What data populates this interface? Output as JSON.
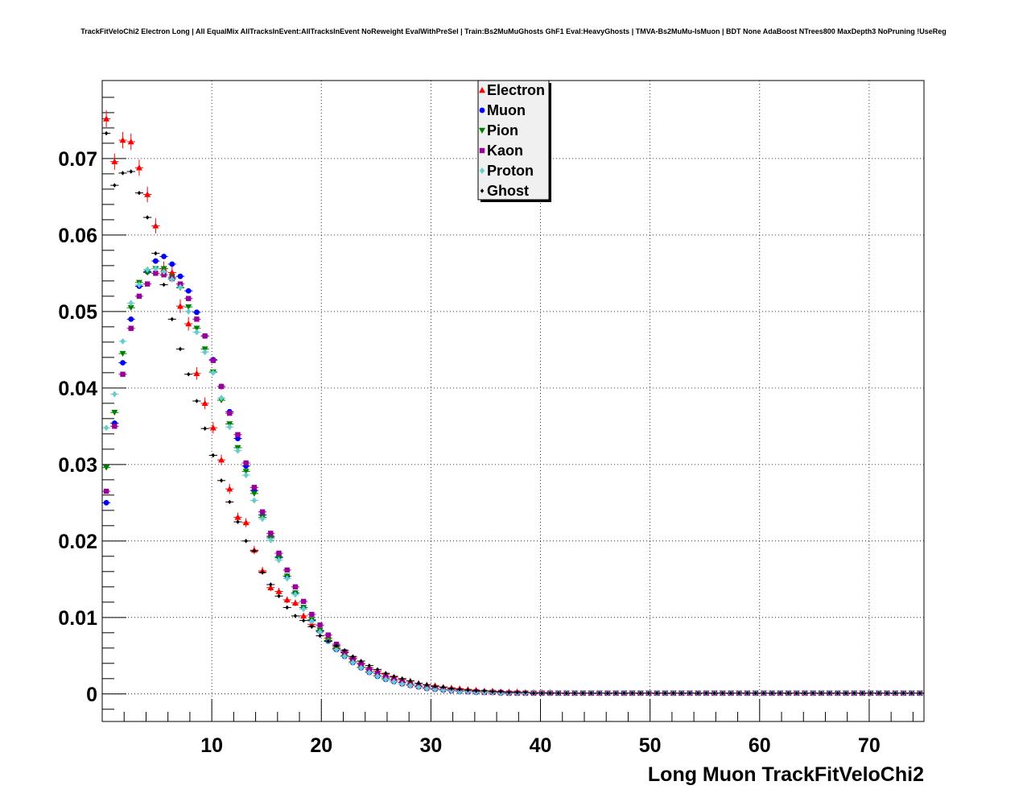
{
  "chart_data": {
    "type": "scatter",
    "title": "TrackFitVeloChi2 Electron Long | All EqualMix AllTracksInEvent:AllTracksInEvent NoReweight EvalWithPreSel | Train:Bs2MuMuGhosts GhF1 Eval:HeavyGhosts | TMVA-Bs2MuMu-IsMuon | BDT None AdaBoost NTrees800 MaxDepth3 NoPruning !UseReg",
    "xlabel": "Long Muon TrackFitVeloChi2",
    "ylabel": "",
    "xlim": [
      0,
      75
    ],
    "ylim": [
      -0.0036,
      0.0802
    ],
    "x_ticks": [
      10,
      20,
      30,
      40,
      50,
      60,
      70
    ],
    "x_tick_labels": [
      "10",
      "20",
      "30",
      "40",
      "50",
      "60",
      "70"
    ],
    "y_ticks": [
      0,
      0.01,
      0.02,
      0.03,
      0.04,
      0.05,
      0.06,
      0.07
    ],
    "y_tick_labels": [
      "0",
      "0.01",
      "0.02",
      "0.03",
      "0.04",
      "0.05",
      "0.06",
      "0.07"
    ],
    "grid": true,
    "legend_position": "top-center",
    "bin_width": 0.75,
    "series": [
      {
        "name": "Electron",
        "color": "#ff0000",
        "marker": "triangle-up",
        "x_err": true,
        "y_err": true,
        "values": [
          0.0752,
          0.0696,
          0.0724,
          0.0722,
          0.0688,
          0.0653,
          0.0612,
          0.0556,
          0.0551,
          0.0507,
          0.0484,
          0.0419,
          0.038,
          0.0348,
          0.0306,
          0.0268,
          0.0231,
          0.0224,
          0.0188,
          0.0161,
          0.0139,
          0.0134,
          0.0123,
          0.0119,
          0.0102,
          0.0091,
          0.0083,
          0.0073,
          0.006,
          0.0054,
          0.0047,
          0.004,
          0.0034,
          0.003,
          0.0026,
          0.0022,
          0.0019,
          0.0017,
          0.0014,
          0.0012,
          0.0011,
          0.0009,
          0.0008,
          0.0007,
          0.0006,
          0.0005,
          0.0004,
          0.0004,
          0.0003,
          0.0003,
          0.0003,
          0.0002,
          0.0002,
          0.0002,
          0.0002,
          0.0001,
          0.0001,
          0.0001,
          0.0001,
          0.0001,
          0.0001,
          0.0001,
          0.0001,
          0.0001,
          0.0001,
          0.0001,
          0.0001,
          0.0001,
          0.0001,
          0.0001,
          0.0001,
          0.0001,
          0.0001,
          0.0001,
          0.0001,
          0.0001,
          0.0001,
          0.0001,
          0.0001,
          0.0001,
          0.0001,
          0.0001,
          0.0001,
          0.0001,
          0.0001,
          0.0001,
          0.0001,
          0.0001,
          0.0001,
          0.0001,
          0.0001,
          0.0001,
          0.0001,
          0.0001,
          0.0001,
          0.0001,
          0.0001,
          0.0001,
          0.0001,
          0.0001
        ]
      },
      {
        "name": "Muon",
        "color": "#0000ff",
        "marker": "circle",
        "x_err": true,
        "y_err": false,
        "values": [
          0.025,
          0.0354,
          0.0433,
          0.049,
          0.0533,
          0.0552,
          0.0566,
          0.0572,
          0.0562,
          0.0546,
          0.0527,
          0.0499,
          0.0468,
          0.0437,
          0.0402,
          0.0369,
          0.0334,
          0.0298,
          0.0266,
          0.0234,
          0.0206,
          0.0179,
          0.0154,
          0.0132,
          0.0113,
          0.0096,
          0.0082,
          0.0069,
          0.0058,
          0.0049,
          0.0041,
          0.0034,
          0.0028,
          0.0023,
          0.0019,
          0.0016,
          0.0013,
          0.0011,
          0.0009,
          0.0007,
          0.0006,
          0.0005,
          0.0004,
          0.0003,
          0.0003,
          0.0002,
          0.0002,
          0.0002,
          0.0001,
          0.0001,
          0.0001,
          0.0001,
          0.0001,
          0.0001,
          0.0001,
          0.0001,
          0.0001,
          0.0001,
          0.0001,
          0.0001,
          0.0001,
          0.0001,
          0.0001,
          0.0001,
          0.0001,
          0.0001,
          0.0001,
          0.0001,
          0.0001,
          0.0001,
          0.0001,
          0.0001,
          0.0001,
          0.0001,
          0.0001,
          0.0001,
          0.0001,
          0.0001,
          0.0001,
          0.0001,
          0.0001,
          0.0001,
          0.0001,
          0.0001,
          0.0001,
          0.0001,
          0.0001,
          0.0001,
          0.0001,
          0.0001,
          0.0001,
          0.0001,
          0.0001,
          0.0001,
          0.0001,
          0.0001,
          0.0001,
          0.0001,
          0.0001,
          0.0001
        ]
      },
      {
        "name": "Pion",
        "color": "#008000",
        "marker": "triangle-down",
        "x_err": true,
        "y_err": false,
        "values": [
          0.0296,
          0.0368,
          0.0445,
          0.0505,
          0.0538,
          0.0551,
          0.0556,
          0.0556,
          0.0545,
          0.0531,
          0.0506,
          0.0478,
          0.0451,
          0.0421,
          0.0384,
          0.0353,
          0.0322,
          0.0291,
          0.0262,
          0.0231,
          0.0204,
          0.0178,
          0.0154,
          0.0132,
          0.0113,
          0.0097,
          0.0083,
          0.007,
          0.0059,
          0.005,
          0.0042,
          0.0035,
          0.0029,
          0.0024,
          0.002,
          0.0016,
          0.0013,
          0.0011,
          0.0009,
          0.0007,
          0.0006,
          0.0005,
          0.0004,
          0.0003,
          0.0003,
          0.0002,
          0.0002,
          0.0002,
          0.0001,
          0.0001,
          0.0001,
          0.0001,
          0.0001,
          0.0001,
          0.0001,
          0.0001,
          0.0001,
          0.0001,
          0.0001,
          0.0001,
          0.0001,
          0.0001,
          0.0001,
          0.0001,
          0.0001,
          0.0001,
          0.0001,
          0.0001,
          0.0001,
          0.0001,
          0.0001,
          0.0001,
          0.0001,
          0.0001,
          0.0001,
          0.0001,
          0.0001,
          0.0001,
          0.0001,
          0.0001,
          0.0001,
          0.0001,
          0.0001,
          0.0001,
          0.0001,
          0.0001,
          0.0001,
          0.0001,
          0.0001,
          0.0001,
          0.0001,
          0.0001,
          0.0001,
          0.0001,
          0.0001,
          0.0001,
          0.0001,
          0.0001,
          0.0001,
          0.0001
        ]
      },
      {
        "name": "Kaon",
        "color": "#990099",
        "marker": "square",
        "x_err": true,
        "y_err": false,
        "values": [
          0.0265,
          0.035,
          0.0418,
          0.0478,
          0.052,
          0.0536,
          0.055,
          0.0548,
          0.0543,
          0.0536,
          0.0517,
          0.049,
          0.0468,
          0.0436,
          0.0402,
          0.0367,
          0.0339,
          0.0302,
          0.027,
          0.0238,
          0.021,
          0.0184,
          0.0162,
          0.014,
          0.0121,
          0.0104,
          0.009,
          0.0077,
          0.0065,
          0.0055,
          0.0046,
          0.0039,
          0.0032,
          0.0027,
          0.0022,
          0.0018,
          0.0015,
          0.0012,
          0.001,
          0.0008,
          0.0007,
          0.0006,
          0.0005,
          0.0004,
          0.0003,
          0.0003,
          0.0002,
          0.0002,
          0.0002,
          0.0001,
          0.0001,
          0.0001,
          0.0001,
          0.0001,
          0.0001,
          0.0001,
          0.0001,
          0.0001,
          0.0001,
          0.0001,
          0.0001,
          0.0001,
          0.0001,
          0.0001,
          0.0001,
          0.0001,
          0.0001,
          0.0001,
          0.0001,
          0.0001,
          0.0001,
          0.0001,
          0.0001,
          0.0001,
          0.0001,
          0.0001,
          0.0001,
          0.0001,
          0.0001,
          0.0001,
          0.0001,
          0.0001,
          0.0001,
          0.0001,
          0.0001,
          0.0001,
          0.0001,
          0.0001,
          0.0001,
          0.0001,
          0.0001,
          0.0001,
          0.0001,
          0.0001,
          0.0001,
          0.0001,
          0.0001,
          0.0001,
          0.0001,
          0.0001
        ]
      },
      {
        "name": "Proton",
        "color": "#66cccc",
        "marker": "diamond",
        "x_err": true,
        "y_err": false,
        "values": [
          0.0348,
          0.0392,
          0.0461,
          0.0511,
          0.0535,
          0.0555,
          0.0556,
          0.0552,
          0.0542,
          0.0532,
          0.05,
          0.0473,
          0.0447,
          0.042,
          0.0387,
          0.0349,
          0.0318,
          0.0286,
          0.0253,
          0.0229,
          0.0201,
          0.0175,
          0.0151,
          0.013,
          0.0111,
          0.0095,
          0.0081,
          0.0069,
          0.0058,
          0.0049,
          0.0041,
          0.0034,
          0.0028,
          0.0023,
          0.0019,
          0.0016,
          0.0013,
          0.0011,
          0.0009,
          0.0007,
          0.0006,
          0.0005,
          0.0004,
          0.0003,
          0.0003,
          0.0002,
          0.0002,
          0.0002,
          0.0001,
          0.0001,
          0.0001,
          0.0001,
          0.0001,
          0.0001,
          0.0001,
          0.0001,
          0.0001,
          0.0001,
          0.0001,
          0.0001,
          0.0001,
          0.0001,
          0.0001,
          0.0001,
          0.0001,
          0.0001,
          0.0001,
          0.0001,
          0.0001,
          0.0001,
          0.0001,
          0.0001,
          0.0001,
          0.0001,
          0.0001,
          0.0001,
          0.0001,
          0.0001,
          0.0001,
          0.0001,
          0.0001,
          0.0001,
          0.0001,
          0.0001,
          0.0001,
          0.0001,
          0.0001,
          0.0001,
          0.0001,
          0.0001,
          0.0001,
          0.0001,
          0.0001,
          0.0001,
          0.0001,
          0.0001,
          0.0001,
          0.0001,
          0.0001,
          0.0001
        ]
      },
      {
        "name": "Ghost",
        "color": "#000000",
        "marker": "diamond-small",
        "x_err": true,
        "y_err": false,
        "values": [
          0.0733,
          0.0665,
          0.0681,
          0.0683,
          0.0655,
          0.0623,
          0.0576,
          0.0535,
          0.049,
          0.0451,
          0.0418,
          0.0383,
          0.0347,
          0.0312,
          0.0279,
          0.0251,
          0.0225,
          0.02,
          0.0187,
          0.0159,
          0.0143,
          0.0128,
          0.0113,
          0.0102,
          0.0096,
          0.0088,
          0.0076,
          0.0069,
          0.0063,
          0.0057,
          0.0049,
          0.0043,
          0.0037,
          0.0032,
          0.0027,
          0.0023,
          0.002,
          0.0017,
          0.0014,
          0.0012,
          0.001,
          0.0009,
          0.0007,
          0.0006,
          0.0005,
          0.0004,
          0.0004,
          0.0003,
          0.0003,
          0.0002,
          0.0002,
          0.0002,
          0.0001,
          0.0001,
          0.0001,
          0.0001,
          0.0001,
          0.0001,
          0.0001,
          0.0001,
          0.0001,
          0.0001,
          0.0001,
          0.0001,
          0.0001,
          0.0001,
          0.0001,
          0.0001,
          0.0001,
          0.0001,
          0.0001,
          0.0001,
          0.0001,
          0.0001,
          0.0001,
          0.0001,
          0.0001,
          0.0001,
          0.0001,
          0.0001,
          0.0001,
          0.0001,
          0.0001,
          0.0001,
          0.0001,
          0.0001,
          0.0001,
          0.0001,
          0.0001,
          0.0001,
          0.0001,
          0.0001,
          0.0001,
          0.0001,
          0.0001,
          0.0001,
          0.0001,
          0.0001,
          0.0001,
          0.0001
        ]
      }
    ]
  }
}
